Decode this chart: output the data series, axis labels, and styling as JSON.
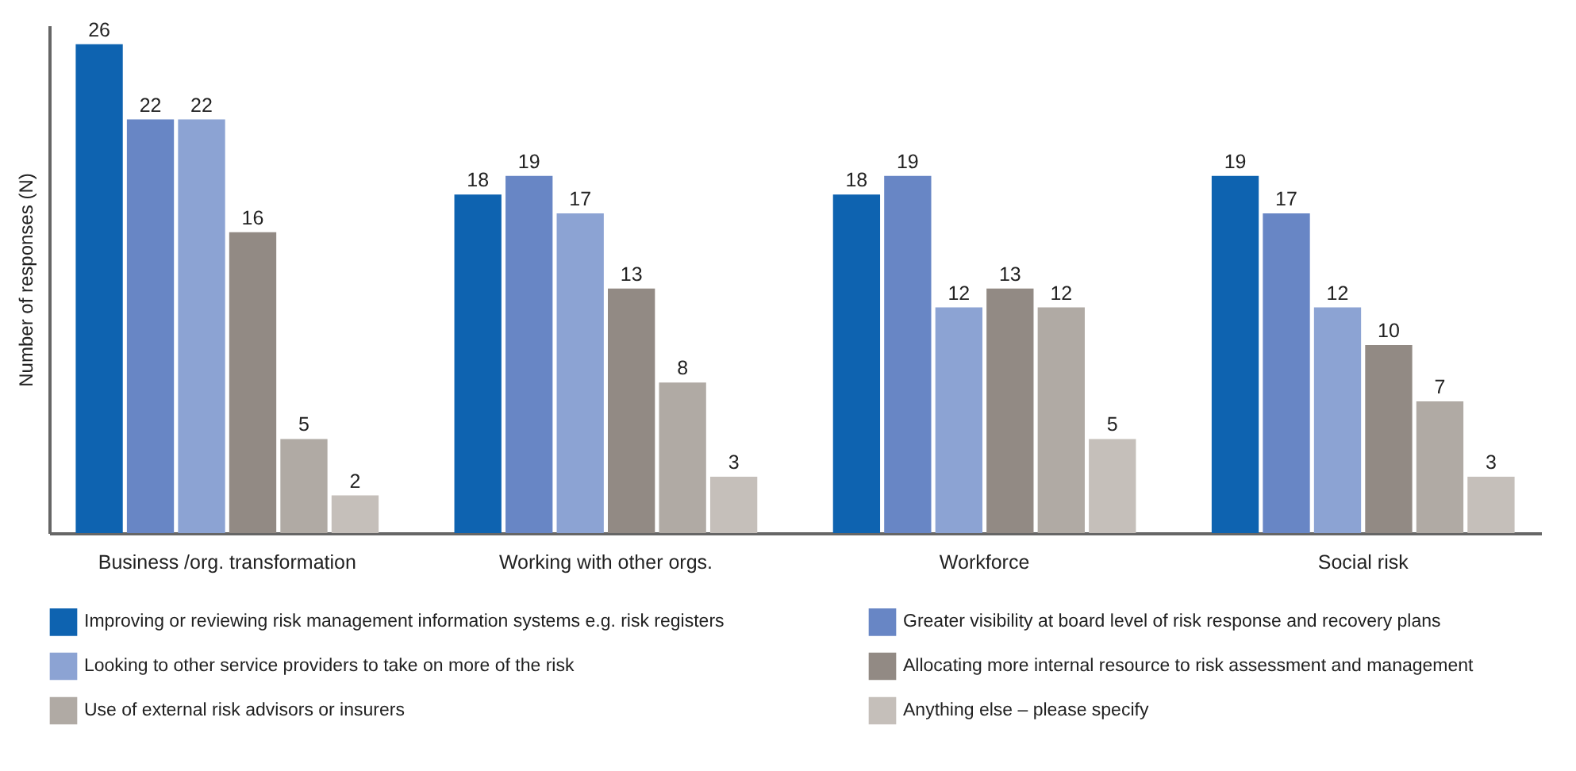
{
  "chart_data": {
    "type": "bar",
    "ylabel": "Number of responses (N)",
    "categories": [
      "Business /org. transformation",
      "Working with other orgs.",
      "Workforce",
      "Social risk"
    ],
    "series": [
      {
        "name": "Improving or reviewing risk management information systems e.g. risk registers",
        "color": "#0e63b0",
        "values": [
          26,
          18,
          18,
          19
        ]
      },
      {
        "name": "Greater visibility at board level of risk response and recovery plans",
        "color": "#6886c5",
        "values": [
          22,
          19,
          19,
          17
        ]
      },
      {
        "name": "Looking to other service providers to take on more of the risk",
        "color": "#8ca3d3",
        "values": [
          22,
          17,
          12,
          12
        ]
      },
      {
        "name": "Allocating more internal resource to risk assessment and management",
        "color": "#928a84",
        "values": [
          16,
          13,
          13,
          10
        ]
      },
      {
        "name": "Use of external risk advisors or insurers",
        "color": "#b0aaa4",
        "values": [
          5,
          8,
          12,
          7
        ]
      },
      {
        "name": "Anything else – please specify",
        "color": "#c5bfba",
        "values": [
          2,
          3,
          5,
          3
        ]
      }
    ],
    "ylim": [
      0,
      27
    ],
    "data_labels": true,
    "legend": "bottom",
    "grid": false,
    "tick_labels": "x"
  }
}
